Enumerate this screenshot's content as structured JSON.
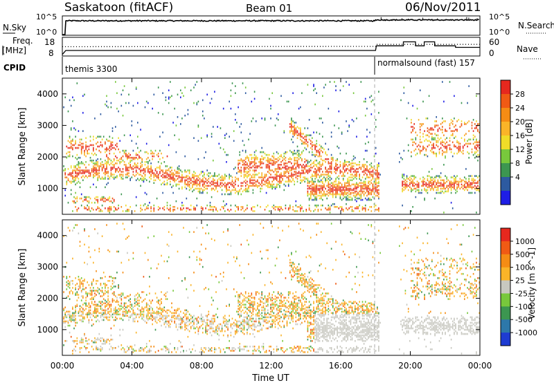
{
  "header": {
    "station": "Saskatoon (fitACF)",
    "beam": "Beam 01",
    "date": "06/Nov/2011"
  },
  "top_panel": {
    "left_label": "N.Sky",
    "left_ticks": [
      "10^5",
      "10^0"
    ],
    "right_ticks": [
      "10^5",
      "10^0"
    ],
    "right_label": "N.Search"
  },
  "freq_panel": {
    "left_label_line1": "Freq.",
    "left_label_line2": "[MHz]",
    "left_ticks": [
      "18",
      "8"
    ],
    "right_ticks": [
      "60",
      "0"
    ],
    "right_label": "Nave"
  },
  "cpid_panel": {
    "label": "CPID",
    "program_1": "themis 3300",
    "program_2": "normalsound (fast) 157"
  },
  "x_axis": {
    "ticks": [
      "00:00",
      "04:00",
      "08:00",
      "12:00",
      "16:00",
      "20:00",
      "00:00"
    ],
    "label": "Time UT"
  },
  "power_panel": {
    "ylabel": "Slant Range [km]",
    "yticks": [
      "4000",
      "3000",
      "2000",
      "1000"
    ],
    "colorbar_label": "Power [dB]",
    "colorbar_ticks": [
      "28",
      "24",
      "20",
      "16",
      "12",
      "8",
      "4"
    ],
    "colors": [
      "#1e1ee6",
      "#2d5aa0",
      "#3c9650",
      "#78c83c",
      "#f0dc28",
      "#fab428",
      "#f58c14",
      "#f05a14",
      "#e6281e"
    ]
  },
  "velocity_panel": {
    "ylabel": "Slant Range [km]",
    "yticks": [
      "4000",
      "3000",
      "2000",
      "1000"
    ],
    "colorbar_label": "Velocity [m s^-1]",
    "colorbar_ticks": [
      "1000",
      "500",
      "100",
      "25",
      "-25",
      "-100",
      "-500",
      "-1000"
    ],
    "colors": [
      "#1e3cd2",
      "#2d78aa",
      "#3c9650",
      "#78c83c",
      "#c8c8c0",
      "#fab428",
      "#f58c14",
      "#f05a14",
      "#e6281e"
    ]
  },
  "chart_data": [
    {
      "type": "line",
      "name": "N.Sky / N.Search noise",
      "x_range_hours": [
        0,
        24
      ],
      "note_scale": "log",
      "ylim_log10": [
        0,
        5
      ],
      "x": [
        0,
        0.2,
        1,
        3,
        6,
        9,
        12,
        15,
        18,
        18.1,
        19,
        20,
        21,
        22,
        23,
        24
      ],
      "values_log10": [
        0,
        4.2,
        4.1,
        4.2,
        4.15,
        4.2,
        4.1,
        4.2,
        4.1,
        4.3,
        4.4,
        4.5,
        4.3,
        4.4,
        4.4,
        4.4
      ]
    },
    {
      "type": "line",
      "name": "Frequency",
      "x_range_hours": [
        0,
        24
      ],
      "ylim": [
        8,
        18
      ],
      "series": [
        {
          "name": "Freq. [MHz]",
          "x": [
            0,
            0.2,
            18,
            18.05,
            19.6,
            19.6,
            20.3,
            20.3,
            20.8,
            20.8,
            21.4,
            21.4,
            22.6,
            22.6,
            24
          ],
          "values": [
            8.5,
            10.8,
            10.8,
            13.5,
            13.5,
            15.8,
            15.8,
            13.5,
            13.5,
            15.8,
            15.8,
            13.5,
            13.5,
            12.6,
            12.6
          ]
        },
        {
          "name": "Nave",
          "x": [
            0,
            18,
            18.05,
            24
          ],
          "values": [
            30,
            31,
            38,
            38
          ]
        }
      ]
    },
    {
      "type": "heatmap",
      "name": "Power",
      "x_range_hours": [
        0,
        24
      ],
      "ylim": [
        180,
        4500
      ],
      "value_range_dB": [
        0,
        32
      ],
      "note": "Backscatter echoes concentrated near 1000-2000 km; data gap around 18:30-19:20 UT"
    },
    {
      "type": "heatmap",
      "name": "Velocity",
      "x_range_hours": [
        0,
        24
      ],
      "ylim": [
        180,
        4500
      ],
      "value_range_m_s": [
        -1000,
        1000
      ]
    }
  ]
}
